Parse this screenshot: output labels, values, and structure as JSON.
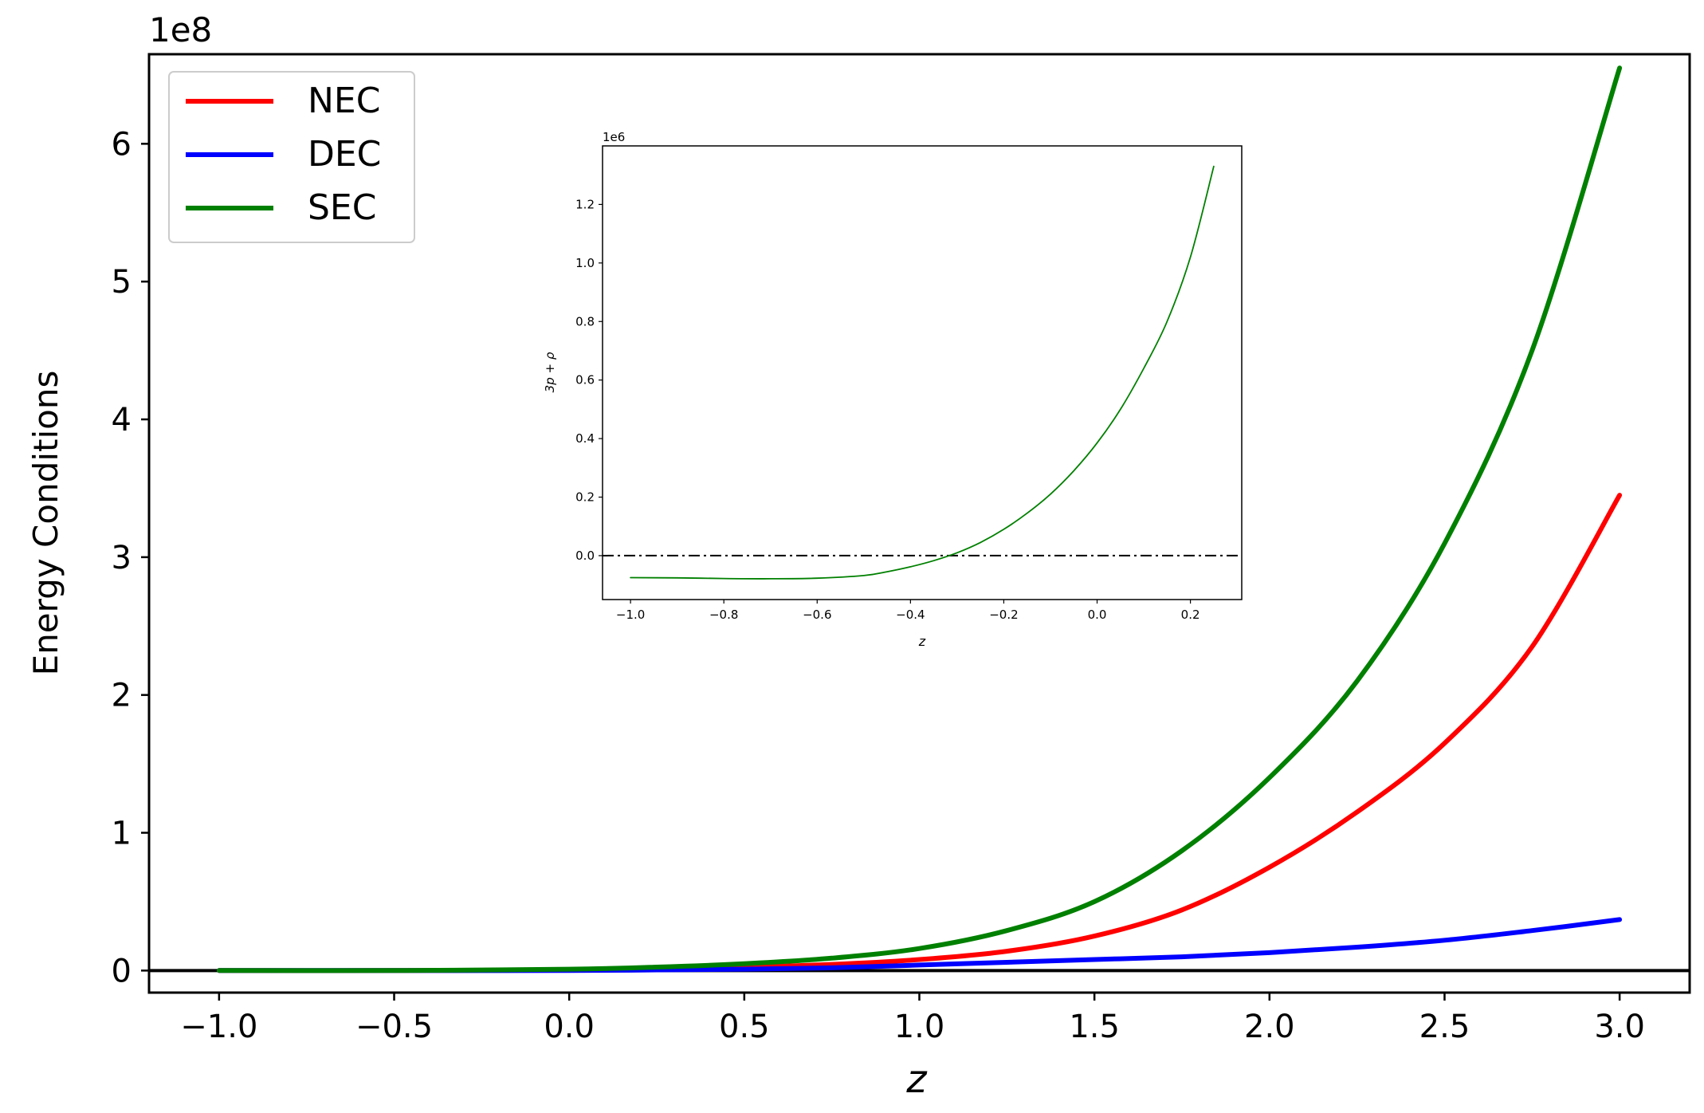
{
  "chart_data": [
    {
      "type": "line",
      "xlabel": "z",
      "ylabel": "Energy Conditions",
      "y_offset_label": "1e8",
      "xlim": [
        -1.2,
        3.2
      ],
      "ylim": [
        -0.16,
        6.65
      ],
      "xticks": [
        -1.0,
        -0.5,
        0.0,
        0.5,
        1.0,
        1.5,
        2.0,
        2.5,
        3.0
      ],
      "xtick_labels": [
        "−1.0",
        "−0.5",
        "0.0",
        "0.5",
        "1.0",
        "1.5",
        "2.0",
        "2.5",
        "3.0"
      ],
      "yticks": [
        0,
        1,
        2,
        3,
        4,
        5,
        6
      ],
      "ytick_labels": [
        "0",
        "1",
        "2",
        "3",
        "4",
        "5",
        "6"
      ],
      "grid": false,
      "legend_position": "top-left",
      "reference_line_y": 0,
      "x": [
        -1.0,
        -0.5,
        0.0,
        0.25,
        0.5,
        0.75,
        1.0,
        1.25,
        1.5,
        1.75,
        2.0,
        2.25,
        2.5,
        2.75,
        3.0
      ],
      "series": [
        {
          "name": "NEC",
          "color": "#ff0000",
          "values": [
            0.0,
            0.0,
            0.005,
            0.012,
            0.025,
            0.045,
            0.08,
            0.14,
            0.25,
            0.44,
            0.75,
            1.15,
            1.65,
            2.35,
            3.45
          ]
        },
        {
          "name": "DEC",
          "color": "#0000ff",
          "values": [
            0.0,
            0.0,
            0.0,
            0.005,
            0.01,
            0.02,
            0.04,
            0.06,
            0.08,
            0.1,
            0.13,
            0.17,
            0.22,
            0.29,
            0.37
          ]
        },
        {
          "name": "SEC",
          "color": "#008000",
          "values": [
            0.0,
            0.0,
            0.01,
            0.025,
            0.05,
            0.09,
            0.16,
            0.29,
            0.5,
            0.87,
            1.4,
            2.1,
            3.1,
            4.5,
            6.55
          ]
        }
      ]
    },
    {
      "type": "line",
      "xlabel": "z",
      "ylabel": "3p + ρ",
      "y_offset_label": "1e6",
      "xlim": [
        -1.06,
        0.31
      ],
      "ylim": [
        -0.15,
        1.4
      ],
      "xticks": [
        -1.0,
        -0.8,
        -0.6,
        -0.4,
        -0.2,
        0.0,
        0.2
      ],
      "xtick_labels": [
        "−1.0",
        "−0.8",
        "−0.6",
        "−0.4",
        "−0.2",
        "0.0",
        "0.2"
      ],
      "yticks": [
        0.0,
        0.2,
        0.4,
        0.6,
        0.8,
        1.0,
        1.2
      ],
      "ytick_labels": [
        "0.0",
        "0.2",
        "0.4",
        "0.6",
        "0.8",
        "1.0",
        "1.2"
      ],
      "grid": false,
      "reference_line_y": 0,
      "x": [
        -1.0,
        -0.9,
        -0.8,
        -0.7,
        -0.6,
        -0.5,
        -0.45,
        -0.4,
        -0.35,
        -0.3,
        -0.25,
        -0.2,
        -0.15,
        -0.1,
        -0.05,
        0.0,
        0.05,
        0.1,
        0.15,
        0.2,
        0.25
      ],
      "series": [
        {
          "color": "#008000",
          "values": [
            -0.075,
            -0.076,
            -0.078,
            -0.079,
            -0.077,
            -0.068,
            -0.055,
            -0.038,
            -0.017,
            0.01,
            0.045,
            0.09,
            0.145,
            0.21,
            0.29,
            0.385,
            0.5,
            0.64,
            0.8,
            1.02,
            1.33
          ]
        }
      ]
    }
  ]
}
